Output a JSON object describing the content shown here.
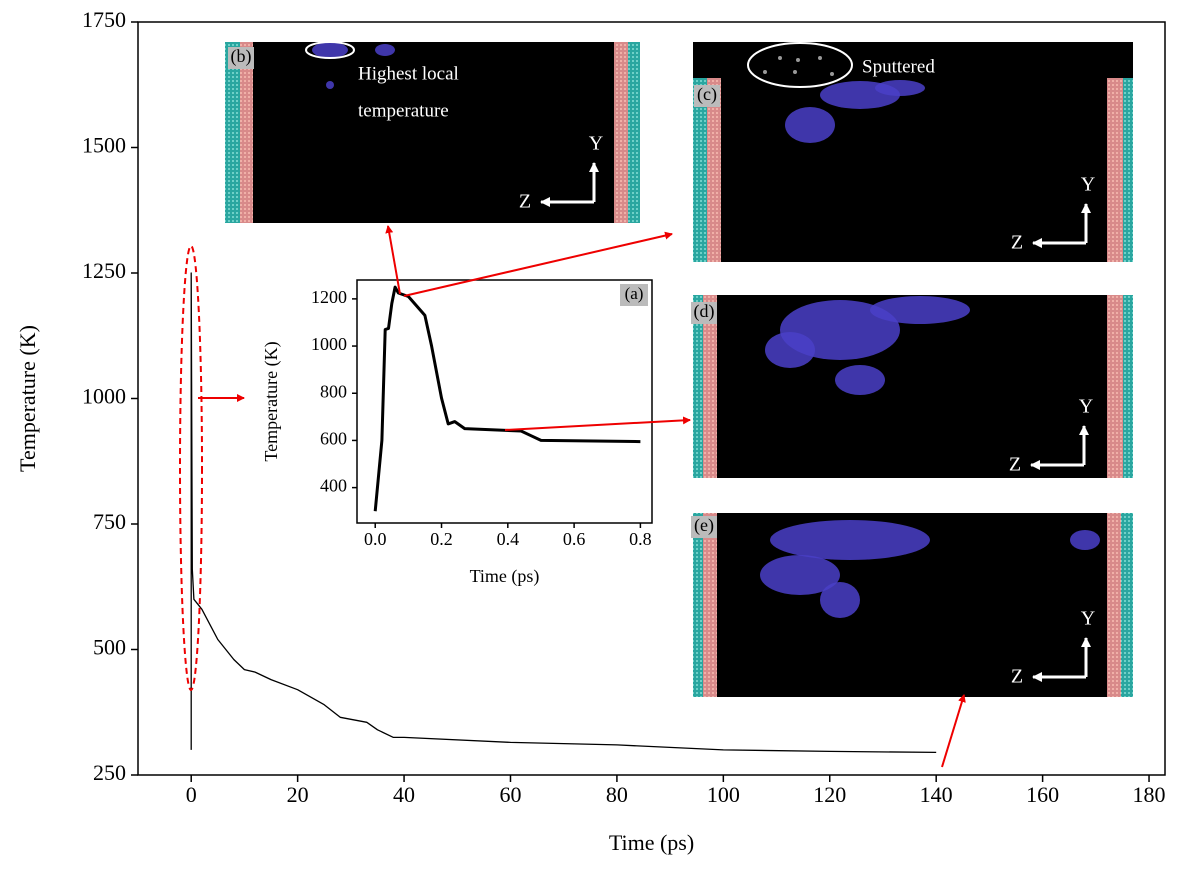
{
  "chart_data": [
    {
      "type": "line",
      "x_label": "Time (ps)",
      "y_label": "Temperature (K)",
      "x": [
        0,
        0,
        0.2,
        0.5,
        2,
        5,
        8,
        10,
        12,
        15,
        20,
        25,
        28,
        33,
        35,
        38,
        40,
        60,
        80,
        100,
        120,
        140
      ],
      "values": [
        300,
        1250,
        660,
        600,
        580,
        520,
        480,
        460,
        455,
        440,
        420,
        390,
        365,
        355,
        340,
        325,
        325,
        315,
        310,
        300,
        297,
        295
      ],
      "color": "#000000",
      "xlim": [
        -10,
        183
      ],
      "xticks": [
        0,
        20,
        40,
        60,
        80,
        100,
        120,
        140,
        160,
        180
      ],
      "ylim": [
        250,
        1750
      ],
      "yticks": [
        250,
        500,
        750,
        1000,
        1250,
        1500,
        1750
      ]
    },
    {
      "type": "line",
      "label": "(a)",
      "x_label": "Time (ps)",
      "y_label": "Temperature (K)",
      "x": [
        0,
        0.02,
        0.03,
        0.04,
        0.05,
        0.06,
        0.07,
        0.1,
        0.15,
        0.17,
        0.2,
        0.22,
        0.24,
        0.27,
        0.35,
        0.44,
        0.47,
        0.5,
        0.8
      ],
      "values": [
        300,
        600,
        1070,
        1075,
        1180,
        1250,
        1225,
        1210,
        1130,
        1000,
        780,
        670,
        680,
        650,
        645,
        640,
        620,
        600,
        595
      ],
      "color": "#000000",
      "xlim": [
        -0.055,
        0.835
      ],
      "xticks": [
        {
          "value": 0,
          "label": "0.0"
        },
        0.2,
        0.4,
        0.6,
        0.8
      ],
      "ylim": [
        250,
        1280
      ],
      "yticks": [
        400,
        600,
        800,
        1000,
        1200
      ]
    }
  ],
  "panels": [
    {
      "label": "(b)",
      "notes": [
        "Highest local",
        "temperature"
      ],
      "axes": [
        "Y",
        "Z"
      ]
    },
    {
      "label": "(c)",
      "notes": [
        "Sputtered"
      ],
      "axes": [
        "Y",
        "Z"
      ]
    },
    {
      "label": "(d)",
      "axes": [
        "Y",
        "Z"
      ]
    },
    {
      "label": "(e)",
      "axes": [
        "Y",
        "Z"
      ]
    }
  ]
}
